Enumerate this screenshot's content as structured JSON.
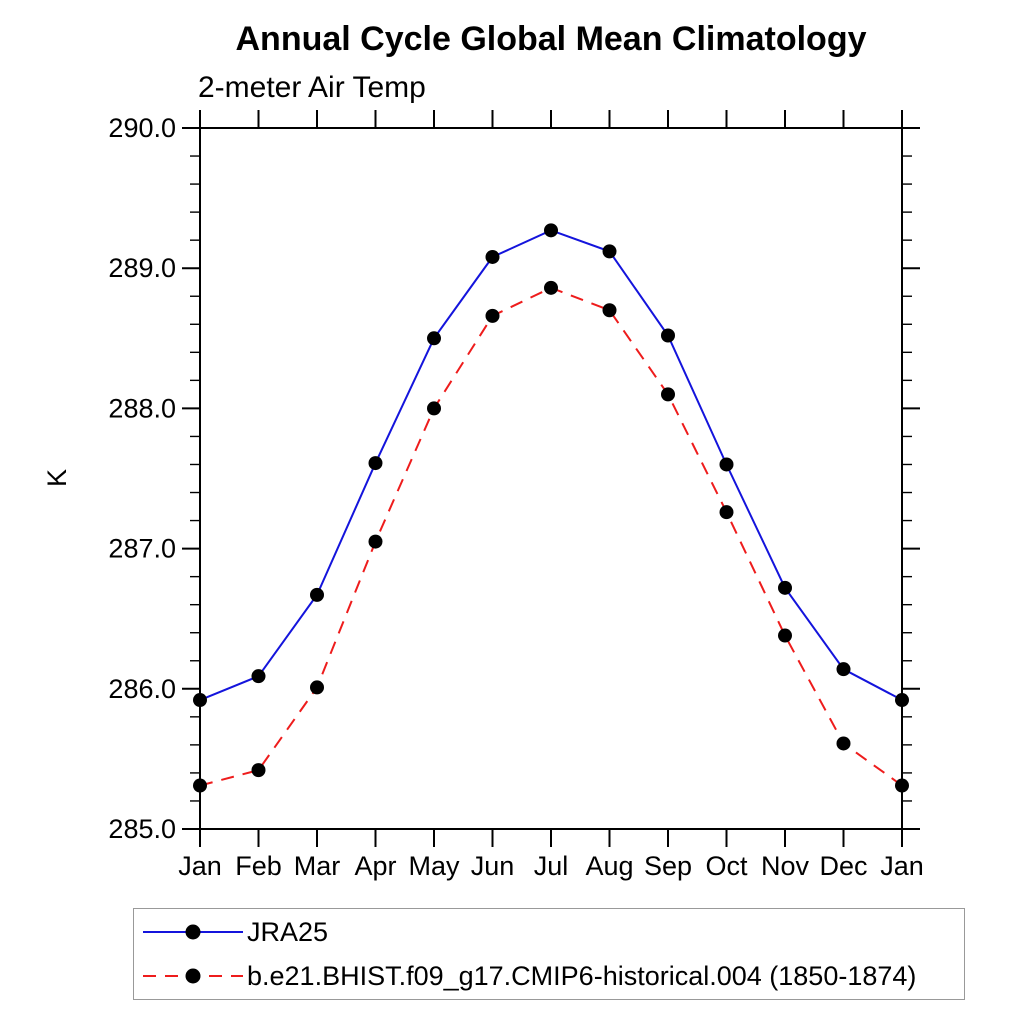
{
  "title": "Annual Cycle Global Mean Climatology",
  "subtitle": "2-meter Air Temp",
  "chart_data": {
    "type": "line",
    "title": "Annual Cycle Global Mean Climatology",
    "subtitle": "2-meter Air Temp",
    "xlabel": "",
    "ylabel": "K",
    "x_categories": [
      "Jan",
      "Feb",
      "Mar",
      "Apr",
      "May",
      "Jun",
      "Jul",
      "Aug",
      "Sep",
      "Oct",
      "Nov",
      "Dec",
      "Jan"
    ],
    "ylim": [
      285.0,
      290.0
    ],
    "ytick_major_step": 1.0,
    "ytick_minor_step": 0.2,
    "ytick_labels": [
      "285.0",
      "286.0",
      "287.0",
      "288.0",
      "289.0",
      "290.0"
    ],
    "grid": false,
    "legend_position": "bottom-left-outside",
    "series": [
      {
        "name": "JRA25",
        "line_style": "solid",
        "color": "#1414dc",
        "marker": "filled-circle",
        "marker_color": "#000000",
        "values": [
          285.92,
          286.09,
          286.67,
          287.61,
          288.5,
          289.08,
          289.27,
          289.12,
          288.52,
          287.6,
          286.72,
          286.14,
          285.92
        ]
      },
      {
        "name": "b.e21.BHIST.f09_g17.CMIP6-historical.004 (1850-1874)",
        "line_style": "dashed",
        "color": "#ee1c1c",
        "marker": "filled-circle",
        "marker_color": "#000000",
        "values": [
          285.31,
          285.42,
          286.01,
          287.05,
          288.0,
          288.66,
          288.86,
          288.7,
          288.1,
          287.26,
          286.38,
          285.61,
          285.31
        ]
      }
    ]
  },
  "colors": {
    "axis": "#000000",
    "text": "#000000",
    "background": "#ffffff",
    "legend_border": "#999999"
  }
}
